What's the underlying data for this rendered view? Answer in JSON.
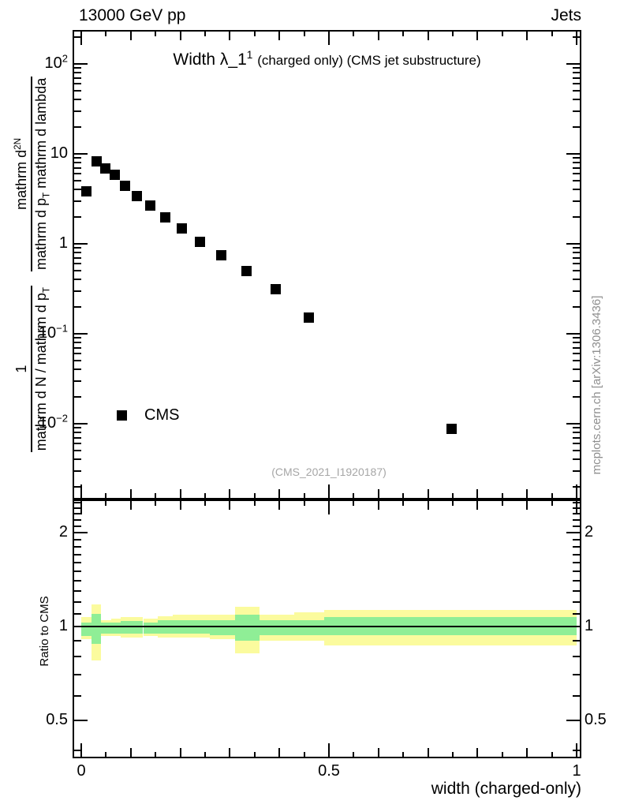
{
  "header": {
    "beam": "13000 GeV pp",
    "analysis_object": "Jets"
  },
  "title": {
    "observable": "Width λ_1",
    "exponent": "1",
    "qualifier": "(charged only) (CMS jet substructure)"
  },
  "y_axis": {
    "frac1_num": "1",
    "frac1_den": "mathrm d N / mathrm d p_T",
    "frac2_num": "mathrm d^2N",
    "frac2_den": "mathrm d p_T mathrm d lambda"
  },
  "x_axis": {
    "label": "width (charged-only)"
  },
  "ratio_axis": {
    "label": "Ratio to CMS"
  },
  "legend": {
    "entries": [
      {
        "label": "CMS",
        "marker": "filled-black-square"
      }
    ]
  },
  "watermark": "(CMS_2021_I1920187)",
  "side_note": "mcplots.cern.ch [arXiv:1306.3436]",
  "colors": {
    "marker": "#000000",
    "band_outer": "#fbfb9e",
    "band_inner": "#8fee96",
    "frame": "#000000",
    "watermark_gray": "#a6a6a6",
    "note_gray": "#8f8f8f"
  },
  "chart_data": [
    {
      "type": "scatter",
      "name": "main-panel",
      "title": "Width λ_1^1 (charged only) (CMS jet substructure)",
      "xlabel": "width (charged-only)",
      "ylabel": "1/(mathrm d N / mathrm d p_T) · mathrm d^2N/(mathrm d p_T mathrm d lambda)",
      "xlim": [
        -0.018,
        1.006
      ],
      "ylog": true,
      "ylim": [
        0.0015,
        229
      ],
      "x_ticks": [
        {
          "v": 0,
          "label": "0"
        },
        {
          "v": 0.5,
          "label": "0.5"
        },
        {
          "v": 1,
          "label": "1"
        }
      ],
      "y_ticks": [
        {
          "v": 100,
          "label": "10^2"
        },
        {
          "v": 10,
          "label": "10"
        },
        {
          "v": 1,
          "label": "1"
        },
        {
          "v": 0.1,
          "label": "10^−1"
        },
        {
          "v": 0.01,
          "label": "10^−2"
        }
      ],
      "series": [
        {
          "name": "CMS",
          "marker": "filled-square",
          "color": "#000000",
          "points": [
            [
              0.011,
              3.8
            ],
            [
              0.031,
              8.2
            ],
            [
              0.049,
              6.9
            ],
            [
              0.067,
              5.9
            ],
            [
              0.089,
              4.4
            ],
            [
              0.112,
              3.4
            ],
            [
              0.139,
              2.65
            ],
            [
              0.169,
              1.95
            ],
            [
              0.203,
              1.48
            ],
            [
              0.239,
              1.05
            ],
            [
              0.283,
              0.75
            ],
            [
              0.334,
              0.5
            ],
            [
              0.393,
              0.31
            ],
            [
              0.459,
              0.152
            ],
            [
              0.747,
              0.0087
            ]
          ]
        }
      ]
    },
    {
      "type": "area",
      "name": "ratio-panel",
      "ylabel": "Ratio to CMS",
      "ylog": true,
      "ylim": [
        0.378,
        2.56
      ],
      "reference_line": 1.0,
      "y_ticks": [
        {
          "v": 2,
          "label": "2"
        },
        {
          "v": 1,
          "label": "1"
        },
        {
          "v": 0.5,
          "label": "0.5"
        }
      ],
      "bands": [
        {
          "x": [
            0,
            0.02
          ],
          "outer": [
            0.91,
            1.07
          ],
          "inner": [
            0.93,
            1.03
          ]
        },
        {
          "x": [
            0.02,
            0.04
          ],
          "outer": [
            0.78,
            1.18
          ],
          "inner": [
            0.88,
            1.1
          ]
        },
        {
          "x": [
            0.04,
            0.06
          ],
          "outer": [
            0.93,
            1.05
          ],
          "inner": [
            0.95,
            1.03
          ]
        },
        {
          "x": [
            0.06,
            0.08
          ],
          "outer": [
            0.93,
            1.06
          ],
          "inner": [
            0.95,
            1.03
          ]
        },
        {
          "x": [
            0.08,
            0.1
          ],
          "outer": [
            0.92,
            1.07
          ],
          "inner": [
            0.95,
            1.04
          ]
        },
        {
          "x": [
            0.1,
            0.125
          ],
          "outer": [
            0.92,
            1.07
          ],
          "inner": [
            0.95,
            1.04
          ]
        },
        {
          "x": [
            0.125,
            0.155
          ],
          "outer": [
            0.93,
            1.06
          ],
          "inner": [
            0.95,
            1.03
          ]
        },
        {
          "x": [
            0.155,
            0.185
          ],
          "outer": [
            0.92,
            1.08
          ],
          "inner": [
            0.95,
            1.05
          ]
        },
        {
          "x": [
            0.185,
            0.22
          ],
          "outer": [
            0.92,
            1.09
          ],
          "inner": [
            0.95,
            1.05
          ]
        },
        {
          "x": [
            0.22,
            0.26
          ],
          "outer": [
            0.92,
            1.09
          ],
          "inner": [
            0.95,
            1.05
          ]
        },
        {
          "x": [
            0.26,
            0.31
          ],
          "outer": [
            0.91,
            1.09
          ],
          "inner": [
            0.94,
            1.05
          ]
        },
        {
          "x": [
            0.31,
            0.36
          ],
          "outer": [
            0.82,
            1.16
          ],
          "inner": [
            0.9,
            1.09
          ]
        },
        {
          "x": [
            0.36,
            0.43
          ],
          "outer": [
            0.9,
            1.09
          ],
          "inner": [
            0.94,
            1.05
          ]
        },
        {
          "x": [
            0.43,
            0.49
          ],
          "outer": [
            0.9,
            1.11
          ],
          "inner": [
            0.94,
            1.05
          ]
        },
        {
          "x": [
            0.49,
            1.0
          ],
          "outer": [
            0.87,
            1.13
          ],
          "inner": [
            0.94,
            1.07
          ]
        }
      ]
    }
  ]
}
